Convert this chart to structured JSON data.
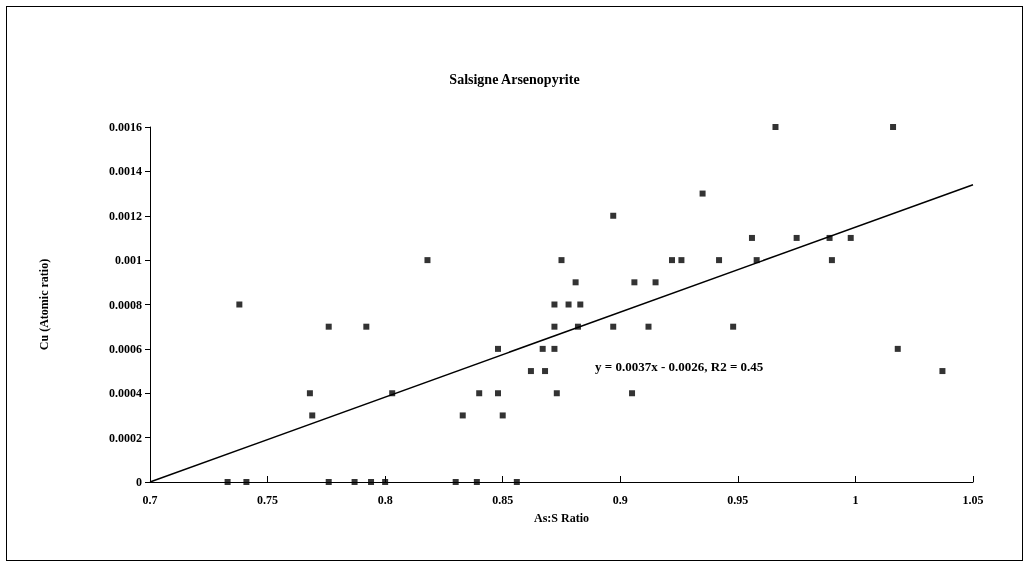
{
  "chart_data": {
    "type": "scatter",
    "title": "Salsigne Arsenopyrite",
    "xlabel": "As:S Ratio",
    "ylabel": "Cu (Atomic ratio)",
    "annotations": [
      "y = 0.0037x - 0.0026, R2 = 0.45"
    ],
    "xlim": [
      0.7,
      1.05
    ],
    "xticks": [
      0.7,
      0.75,
      0.8,
      0.85,
      0.9,
      0.95,
      1,
      1.05
    ],
    "ylim": [
      0,
      0.0016
    ],
    "yticks": [
      0,
      0.0002,
      0.0004,
      0.0006,
      0.0008,
      0.001,
      0.0012,
      0.0014,
      0.0016
    ],
    "grid": false,
    "series": [
      {
        "marker": "square",
        "color": "#000000",
        "x": [
          0.738,
          0.776,
          0.792,
          0.818,
          0.768,
          0.769,
          0.803,
          0.733,
          0.741,
          0.776,
          0.787,
          0.794,
          0.8,
          0.83,
          0.839,
          0.856,
          0.833,
          0.84,
          0.848,
          0.85,
          0.848,
          0.862,
          0.868,
          0.867,
          0.872,
          0.872,
          0.872,
          0.873,
          0.875,
          0.878,
          0.883,
          0.881,
          0.882,
          0.897,
          0.897,
          0.905,
          0.906,
          0.915,
          0.912,
          0.922,
          0.926,
          0.935,
          0.942,
          0.948,
          0.966,
          1.016,
          0.956,
          0.958,
          0.975,
          0.989,
          0.99,
          0.998,
          1.018,
          1.037
        ],
        "values": [
          0.0008,
          0.0007,
          0.0007,
          0.001,
          0.0004,
          0.0003,
          0.0004,
          0,
          0,
          0,
          0,
          0,
          0,
          0,
          0,
          0,
          0.0003,
          0.0004,
          0.0004,
          0.0003,
          0.0006,
          0.0005,
          0.0005,
          0.0006,
          0.0006,
          0.0007,
          0.0008,
          0.0004,
          0.001,
          0.0008,
          0.0008,
          0.0009,
          0.0007,
          0.0012,
          0.0007,
          0.0004,
          0.0009,
          0.0009,
          0.0007,
          0.001,
          0.001,
          0.0013,
          0.001,
          0.0007,
          0.0016,
          0.0016,
          0.0011,
          0.001,
          0.0011,
          0.0011,
          0.001,
          0.0011,
          0.0006,
          0.0005
        ]
      },
      {
        "type": "line",
        "marker": "none",
        "color": "#000000",
        "x": [
          0.7,
          1.05
        ],
        "values": [
          0,
          0.00134
        ]
      }
    ]
  }
}
